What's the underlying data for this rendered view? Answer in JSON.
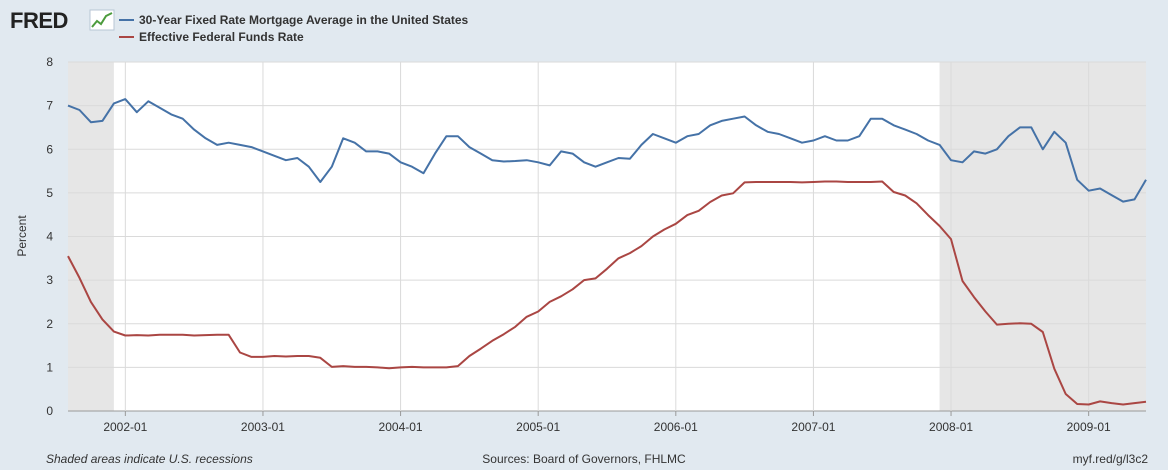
{
  "brand": {
    "logo": "FRED"
  },
  "chart_data": {
    "type": "line",
    "ylabel": "Percent",
    "ylim": [
      0,
      8
    ],
    "yticks": [
      0,
      1,
      2,
      3,
      4,
      5,
      6,
      7,
      8
    ],
    "xlim": [
      "2001-08",
      "2009-06"
    ],
    "xticks": [
      "2002-01",
      "2003-01",
      "2004-01",
      "2005-01",
      "2006-01",
      "2007-01",
      "2008-01",
      "2009-01"
    ],
    "grid": true,
    "legend_position": "top-left",
    "recessions": [
      {
        "start": "2001-08",
        "end": "2001-11"
      },
      {
        "start": "2007-12",
        "end": "2009-06"
      }
    ],
    "series": [
      {
        "name": "30-Year Fixed Rate Mortgage Average in the United States",
        "color": "#4572a7",
        "points": [
          [
            "2001-08",
            7.0
          ],
          [
            "2001-09",
            6.9
          ],
          [
            "2001-10",
            6.62
          ],
          [
            "2001-11",
            6.65
          ],
          [
            "2001-12",
            7.05
          ],
          [
            "2002-01",
            7.15
          ],
          [
            "2002-02",
            6.85
          ],
          [
            "2002-03",
            7.1
          ],
          [
            "2002-04",
            6.95
          ],
          [
            "2002-05",
            6.8
          ],
          [
            "2002-06",
            6.7
          ],
          [
            "2002-07",
            6.45
          ],
          [
            "2002-08",
            6.25
          ],
          [
            "2002-09",
            6.1
          ],
          [
            "2002-10",
            6.15
          ],
          [
            "2002-11",
            6.1
          ],
          [
            "2002-12",
            6.05
          ],
          [
            "2003-01",
            5.95
          ],
          [
            "2003-02",
            5.85
          ],
          [
            "2003-03",
            5.75
          ],
          [
            "2003-04",
            5.8
          ],
          [
            "2003-05",
            5.6
          ],
          [
            "2003-06",
            5.25
          ],
          [
            "2003-07",
            5.6
          ],
          [
            "2003-08",
            6.25
          ],
          [
            "2003-09",
            6.15
          ],
          [
            "2003-10",
            5.95
          ],
          [
            "2003-11",
            5.95
          ],
          [
            "2003-12",
            5.9
          ],
          [
            "2004-01",
            5.7
          ],
          [
            "2004-02",
            5.6
          ],
          [
            "2004-03",
            5.45
          ],
          [
            "2004-04",
            5.9
          ],
          [
            "2004-05",
            6.3
          ],
          [
            "2004-06",
            6.3
          ],
          [
            "2004-07",
            6.05
          ],
          [
            "2004-08",
            5.9
          ],
          [
            "2004-09",
            5.75
          ],
          [
            "2004-10",
            5.72
          ],
          [
            "2004-11",
            5.73
          ],
          [
            "2004-12",
            5.75
          ],
          [
            "2005-01",
            5.7
          ],
          [
            "2005-02",
            5.63
          ],
          [
            "2005-03",
            5.95
          ],
          [
            "2005-04",
            5.9
          ],
          [
            "2005-05",
            5.7
          ],
          [
            "2005-06",
            5.6
          ],
          [
            "2005-07",
            5.7
          ],
          [
            "2005-08",
            5.8
          ],
          [
            "2005-09",
            5.78
          ],
          [
            "2005-10",
            6.1
          ],
          [
            "2005-11",
            6.35
          ],
          [
            "2005-12",
            6.25
          ],
          [
            "2006-01",
            6.15
          ],
          [
            "2006-02",
            6.3
          ],
          [
            "2006-03",
            6.35
          ],
          [
            "2006-04",
            6.55
          ],
          [
            "2006-05",
            6.65
          ],
          [
            "2006-06",
            6.7
          ],
          [
            "2006-07",
            6.75
          ],
          [
            "2006-08",
            6.55
          ],
          [
            "2006-09",
            6.4
          ],
          [
            "2006-10",
            6.35
          ],
          [
            "2006-11",
            6.25
          ],
          [
            "2006-12",
            6.15
          ],
          [
            "2007-01",
            6.2
          ],
          [
            "2007-02",
            6.3
          ],
          [
            "2007-03",
            6.2
          ],
          [
            "2007-04",
            6.2
          ],
          [
            "2007-05",
            6.3
          ],
          [
            "2007-06",
            6.7
          ],
          [
            "2007-07",
            6.7
          ],
          [
            "2007-08",
            6.55
          ],
          [
            "2007-09",
            6.45
          ],
          [
            "2007-10",
            6.35
          ],
          [
            "2007-11",
            6.2
          ],
          [
            "2007-12",
            6.1
          ],
          [
            "2008-01",
            5.75
          ],
          [
            "2008-02",
            5.7
          ],
          [
            "2008-03",
            5.95
          ],
          [
            "2008-04",
            5.9
          ],
          [
            "2008-05",
            6.0
          ],
          [
            "2008-06",
            6.3
          ],
          [
            "2008-07",
            6.5
          ],
          [
            "2008-08",
            6.5
          ],
          [
            "2008-09",
            6.0
          ],
          [
            "2008-10",
            6.4
          ],
          [
            "2008-11",
            6.15
          ],
          [
            "2008-12",
            5.3
          ],
          [
            "2009-01",
            5.05
          ],
          [
            "2009-02",
            5.1
          ],
          [
            "2009-03",
            4.95
          ],
          [
            "2009-04",
            4.8
          ],
          [
            "2009-05",
            4.85
          ],
          [
            "2009-06",
            5.3
          ]
        ]
      },
      {
        "name": "Effective Federal Funds Rate",
        "color": "#aa4643",
        "points": [
          [
            "2001-08",
            3.55
          ],
          [
            "2001-09",
            3.05
          ],
          [
            "2001-10",
            2.5
          ],
          [
            "2001-11",
            2.1
          ],
          [
            "2001-12",
            1.82
          ],
          [
            "2002-01",
            1.73
          ],
          [
            "2002-02",
            1.74
          ],
          [
            "2002-03",
            1.73
          ],
          [
            "2002-04",
            1.75
          ],
          [
            "2002-05",
            1.75
          ],
          [
            "2002-06",
            1.75
          ],
          [
            "2002-07",
            1.73
          ],
          [
            "2002-08",
            1.74
          ],
          [
            "2002-09",
            1.75
          ],
          [
            "2002-10",
            1.75
          ],
          [
            "2002-11",
            1.34
          ],
          [
            "2002-12",
            1.24
          ],
          [
            "2003-01",
            1.24
          ],
          [
            "2003-02",
            1.26
          ],
          [
            "2003-03",
            1.25
          ],
          [
            "2003-04",
            1.26
          ],
          [
            "2003-05",
            1.26
          ],
          [
            "2003-06",
            1.22
          ],
          [
            "2003-07",
            1.01
          ],
          [
            "2003-08",
            1.03
          ],
          [
            "2003-09",
            1.01
          ],
          [
            "2003-10",
            1.01
          ],
          [
            "2003-11",
            1.0
          ],
          [
            "2003-12",
            0.98
          ],
          [
            "2004-01",
            1.0
          ],
          [
            "2004-02",
            1.01
          ],
          [
            "2004-03",
            1.0
          ],
          [
            "2004-04",
            1.0
          ],
          [
            "2004-05",
            1.0
          ],
          [
            "2004-06",
            1.03
          ],
          [
            "2004-07",
            1.26
          ],
          [
            "2004-08",
            1.43
          ],
          [
            "2004-09",
            1.61
          ],
          [
            "2004-10",
            1.76
          ],
          [
            "2004-11",
            1.93
          ],
          [
            "2004-12",
            2.16
          ],
          [
            "2005-01",
            2.28
          ],
          [
            "2005-02",
            2.5
          ],
          [
            "2005-03",
            2.63
          ],
          [
            "2005-04",
            2.79
          ],
          [
            "2005-05",
            3.0
          ],
          [
            "2005-06",
            3.04
          ],
          [
            "2005-07",
            3.26
          ],
          [
            "2005-08",
            3.5
          ],
          [
            "2005-09",
            3.62
          ],
          [
            "2005-10",
            3.78
          ],
          [
            "2005-11",
            4.0
          ],
          [
            "2005-12",
            4.16
          ],
          [
            "2006-01",
            4.29
          ],
          [
            "2006-02",
            4.49
          ],
          [
            "2006-03",
            4.59
          ],
          [
            "2006-04",
            4.79
          ],
          [
            "2006-05",
            4.94
          ],
          [
            "2006-06",
            4.99
          ],
          [
            "2006-07",
            5.24
          ],
          [
            "2006-08",
            5.25
          ],
          [
            "2006-09",
            5.25
          ],
          [
            "2006-10",
            5.25
          ],
          [
            "2006-11",
            5.25
          ],
          [
            "2006-12",
            5.24
          ],
          [
            "2007-01",
            5.25
          ],
          [
            "2007-02",
            5.26
          ],
          [
            "2007-03",
            5.26
          ],
          [
            "2007-04",
            5.25
          ],
          [
            "2007-05",
            5.25
          ],
          [
            "2007-06",
            5.25
          ],
          [
            "2007-07",
            5.26
          ],
          [
            "2007-08",
            5.02
          ],
          [
            "2007-09",
            4.94
          ],
          [
            "2007-10",
            4.76
          ],
          [
            "2007-11",
            4.49
          ],
          [
            "2007-12",
            4.24
          ],
          [
            "2008-01",
            3.94
          ],
          [
            "2008-02",
            2.98
          ],
          [
            "2008-03",
            2.61
          ],
          [
            "2008-04",
            2.28
          ],
          [
            "2008-05",
            1.98
          ],
          [
            "2008-06",
            2.0
          ],
          [
            "2008-07",
            2.01
          ],
          [
            "2008-08",
            2.0
          ],
          [
            "2008-09",
            1.81
          ],
          [
            "2008-10",
            0.97
          ],
          [
            "2008-11",
            0.39
          ],
          [
            "2008-12",
            0.16
          ],
          [
            "2009-01",
            0.15
          ],
          [
            "2009-02",
            0.22
          ],
          [
            "2009-03",
            0.18
          ],
          [
            "2009-04",
            0.15
          ],
          [
            "2009-05",
            0.18
          ],
          [
            "2009-06",
            0.21
          ]
        ]
      }
    ]
  },
  "footer": {
    "left": "Shaded areas indicate U.S. recessions",
    "center": "Sources: Board of Governors, FHLMC",
    "right": "myf.red/g/l3c2"
  }
}
